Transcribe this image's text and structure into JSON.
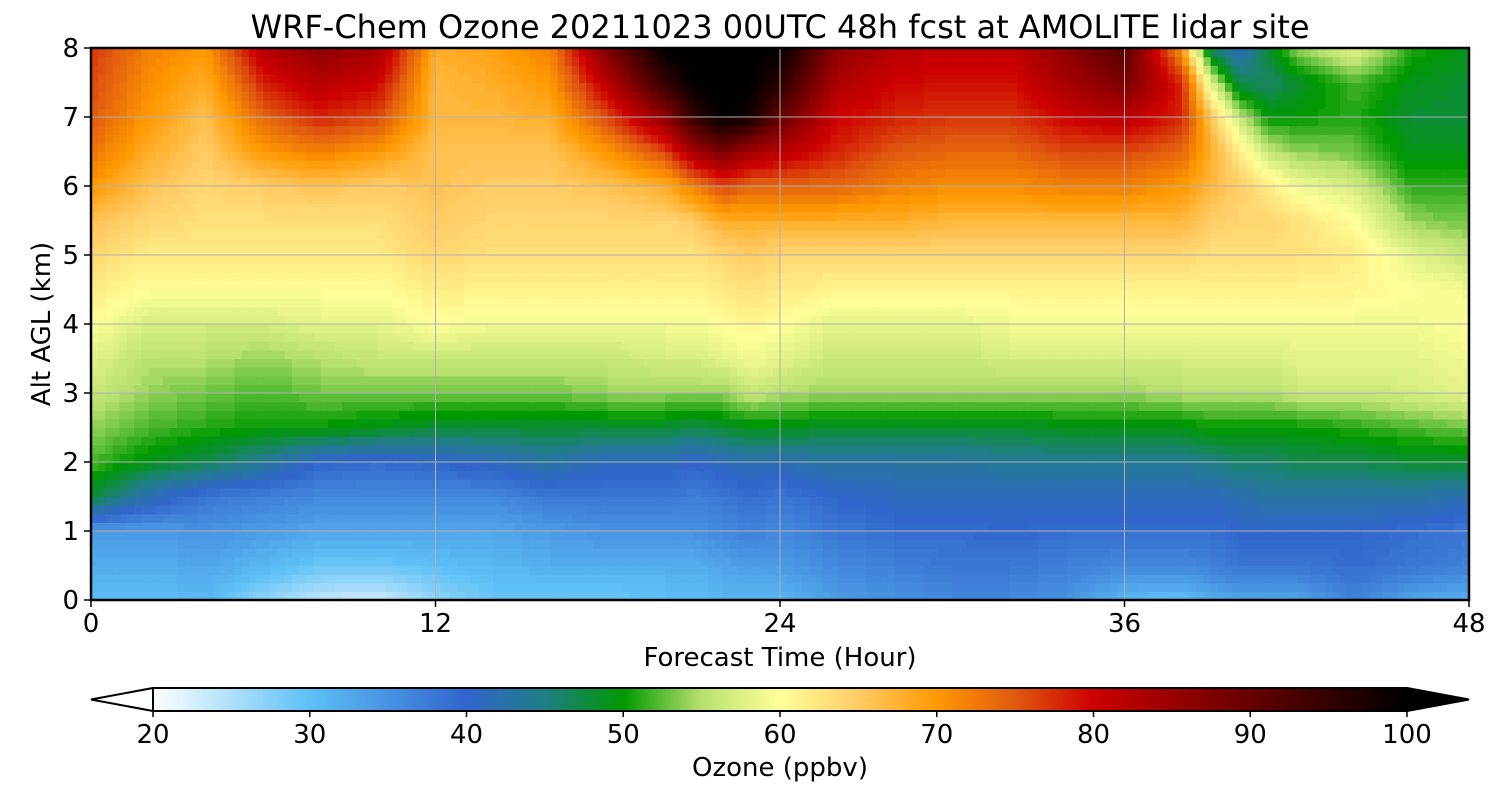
{
  "chart_data": {
    "type": "heatmap",
    "title": "WRF-Chem Ozone  20211023 00UTC 48h fcst at AMOLITE lidar site",
    "xlabel": "Forecast Time (Hour)",
    "ylabel": "Alt AGL (km)",
    "xlim": [
      0,
      48
    ],
    "ylim": [
      0,
      8
    ],
    "xticks": [
      0,
      12,
      24,
      36,
      48
    ],
    "yticks": [
      0,
      1,
      2,
      3,
      4,
      5,
      6,
      7,
      8
    ],
    "grid": true,
    "colorbar": {
      "label": "Ozone  (ppbv)",
      "min": 20,
      "max": 100,
      "ticks": [
        20,
        30,
        40,
        50,
        60,
        70,
        80,
        90,
        100
      ],
      "extend": "both",
      "orientation": "horizontal",
      "color_stops": [
        {
          "value": 20,
          "color": "#ffffff"
        },
        {
          "value": 30,
          "color": "#5ec0f6"
        },
        {
          "value": 40,
          "color": "#3165cc"
        },
        {
          "value": 45,
          "color": "#1f7d84"
        },
        {
          "value": 50,
          "color": "#009900"
        },
        {
          "value": 55,
          "color": "#b8e070"
        },
        {
          "value": 60,
          "color": "#ffff99"
        },
        {
          "value": 65,
          "color": "#ffcc66"
        },
        {
          "value": 70,
          "color": "#ff9900"
        },
        {
          "value": 75,
          "color": "#e05a10"
        },
        {
          "value": 80,
          "color": "#cc0000"
        },
        {
          "value": 90,
          "color": "#660000"
        },
        {
          "value": 100,
          "color": "#000000"
        }
      ]
    },
    "hours": [
      0,
      2,
      4,
      6,
      8,
      10,
      12,
      14,
      16,
      18,
      20,
      21,
      22,
      23,
      24,
      26,
      28,
      30,
      32,
      34,
      36,
      38,
      39,
      40,
      41,
      42,
      44,
      46,
      48
    ],
    "altitudes_km": [
      0,
      0.5,
      1,
      1.5,
      2,
      2.5,
      3,
      3.5,
      4,
      4.5,
      5,
      5.5,
      6,
      6.5,
      7,
      7.5,
      8
    ],
    "ozone_ppbv": [
      [
        30,
        32,
        34,
        48,
        52,
        54,
        56,
        58,
        60,
        62,
        64,
        66,
        70,
        73,
        75,
        76,
        77
      ],
      [
        30,
        32,
        34,
        42,
        49,
        52,
        54,
        55,
        57,
        60,
        62,
        64,
        66,
        68,
        70,
        71,
        72
      ],
      [
        31,
        33,
        35,
        38,
        47,
        51,
        53,
        55,
        57,
        60,
        62,
        63,
        64,
        65,
        66,
        68,
        70
      ],
      [
        27,
        31,
        34,
        37,
        44,
        50,
        52,
        54,
        57,
        60,
        62,
        63,
        65,
        70,
        74,
        78,
        82
      ],
      [
        24,
        29,
        33,
        36,
        40,
        50,
        53,
        55,
        58,
        60,
        62,
        63,
        66,
        72,
        78,
        82,
        86
      ],
      [
        23,
        29,
        33,
        36,
        39,
        49,
        53,
        56,
        58,
        60,
        62,
        63,
        65,
        70,
        76,
        80,
        84
      ],
      [
        27,
        30,
        33,
        36,
        40,
        48,
        53,
        56,
        60,
        62,
        64,
        65,
        66,
        66,
        67,
        67,
        68
      ],
      [
        29,
        31,
        33,
        36,
        41,
        48,
        53,
        56,
        59,
        61,
        63,
        64,
        65,
        66,
        67,
        68,
        69
      ],
      [
        29,
        32,
        34,
        38,
        43,
        48,
        53,
        56,
        59,
        61,
        63,
        64,
        65,
        66,
        68,
        70,
        72
      ],
      [
        29,
        32,
        35,
        38,
        41,
        48,
        54,
        56,
        59,
        61,
        63,
        64,
        66,
        70,
        76,
        82,
        88
      ],
      [
        30,
        32,
        35,
        38,
        41,
        48,
        54,
        57,
        59,
        61,
        63,
        64,
        68,
        76,
        86,
        95,
        100
      ],
      [
        30,
        32,
        35,
        37,
        40,
        47,
        54,
        57,
        59,
        61,
        63,
        65,
        72,
        84,
        95,
        100,
        100
      ],
      [
        31,
        33,
        36,
        38,
        41,
        48,
        54,
        58,
        60,
        62,
        64,
        68,
        76,
        88,
        100,
        100,
        100
      ],
      [
        31,
        34,
        37,
        39,
        42,
        49,
        56,
        59,
        61,
        63,
        65,
        68,
        74,
        84,
        98,
        100,
        100
      ],
      [
        31,
        34,
        36,
        38,
        42,
        49,
        55,
        58,
        60,
        62,
        64,
        68,
        74,
        82,
        90,
        96,
        100
      ],
      [
        34,
        36,
        38,
        40,
        43,
        48,
        54,
        56,
        58,
        61,
        64,
        68,
        74,
        78,
        80,
        83,
        86
      ],
      [
        35,
        37,
        39,
        41,
        43,
        48,
        54,
        56,
        58,
        61,
        64,
        68,
        72,
        75,
        78,
        80,
        82
      ],
      [
        36,
        38,
        39,
        41,
        43,
        48,
        54,
        56,
        58,
        61,
        64,
        67,
        71,
        74,
        77,
        79,
        81
      ],
      [
        36,
        38,
        40,
        41,
        44,
        48,
        54,
        57,
        59,
        61,
        64,
        67,
        71,
        74,
        77,
        79,
        81
      ],
      [
        35,
        37,
        39,
        41,
        44,
        49,
        54,
        57,
        59,
        61,
        64,
        67,
        72,
        76,
        80,
        84,
        86
      ],
      [
        31,
        36,
        39,
        41,
        44,
        49,
        54,
        57,
        59,
        61,
        64,
        67,
        72,
        76,
        82,
        88,
        92
      ],
      [
        30,
        36,
        39,
        41,
        44,
        49,
        55,
        57,
        59,
        61,
        64,
        67,
        70,
        74,
        78,
        78,
        70
      ],
      [
        32,
        37,
        39,
        41,
        45,
        50,
        55,
        57,
        59,
        61,
        63,
        65,
        67,
        68,
        66,
        58,
        46
      ],
      [
        33,
        38,
        40,
        42,
        46,
        50,
        55,
        57,
        59,
        61,
        63,
        64,
        65,
        62,
        56,
        47,
        41
      ],
      [
        33,
        38,
        40,
        43,
        46,
        50,
        55,
        57,
        59,
        61,
        63,
        64,
        62,
        56,
        50,
        46,
        48
      ],
      [
        33,
        38,
        40,
        43,
        47,
        50,
        56,
        58,
        59,
        61,
        63,
        63,
        59,
        54,
        50,
        48,
        54
      ],
      [
        37,
        39,
        40,
        43,
        47,
        51,
        56,
        58,
        59,
        61,
        62,
        60,
        57,
        53,
        51,
        52,
        58
      ],
      [
        33,
        38,
        39,
        43,
        48,
        52,
        57,
        58,
        59,
        60,
        58,
        54,
        51,
        49,
        48,
        49,
        51
      ],
      [
        32,
        37,
        38,
        42,
        48,
        53,
        58,
        59,
        60,
        59,
        56,
        53,
        51,
        49,
        48,
        48,
        49
      ]
    ]
  }
}
